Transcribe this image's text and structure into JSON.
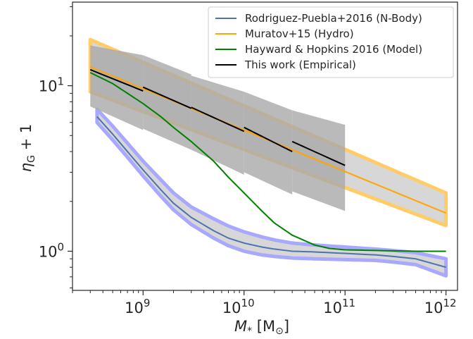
{
  "chart_data": {
    "type": "line",
    "xlabel": "M* [M⊙]",
    "ylabel": "ηG + 1",
    "xscale": "log",
    "yscale": "log",
    "xlim": [
      200000000.0,
      1300000000000.0
    ],
    "ylim": [
      0.58,
      32
    ],
    "grid": false,
    "legend_position": "top-right",
    "x_ticks": [
      {
        "base": "10",
        "exp": "9",
        "value": 1000000000.0
      },
      {
        "base": "10",
        "exp": "10",
        "value": 10000000000.0
      },
      {
        "base": "10",
        "exp": "11",
        "value": 100000000000.0
      },
      {
        "base": "10",
        "exp": "12",
        "value": 1000000000000.0
      }
    ],
    "y_ticks": [
      {
        "base": "10",
        "exp": "0",
        "value": 1
      },
      {
        "base": "10",
        "exp": "1",
        "value": 10
      }
    ],
    "series": [
      {
        "name": "Rodriguez-Puebla+2016 (N-Body)",
        "color": "#4c72b0",
        "band_edge_color": "#a8a8ff",
        "x": [
          350000000.0,
          500000000.0,
          700000000.0,
          1000000000.0,
          1500000000.0,
          2000000000.0,
          3000000000.0,
          5000000000.0,
          7000000000.0,
          10000000000.0,
          15000000000.0,
          20000000000.0,
          30000000000.0,
          50000000000.0,
          100000000000.0,
          200000000000.0,
          300000000000.0,
          500000000000.0,
          700000000000.0,
          1000000000000.0
        ],
        "values": [
          6.5,
          5.1,
          4.0,
          3.1,
          2.35,
          1.95,
          1.6,
          1.33,
          1.2,
          1.12,
          1.06,
          1.03,
          1.0,
          0.99,
          0.97,
          0.95,
          0.93,
          0.9,
          0.85,
          0.8
        ],
        "lower": [
          6.0,
          4.7,
          3.7,
          2.85,
          2.15,
          1.78,
          1.45,
          1.2,
          1.08,
          1.0,
          0.95,
          0.93,
          0.91,
          0.9,
          0.89,
          0.88,
          0.86,
          0.83,
          0.77,
          0.71
        ],
        "upper": [
          7.2,
          5.7,
          4.5,
          3.5,
          2.7,
          2.25,
          1.85,
          1.57,
          1.42,
          1.31,
          1.22,
          1.17,
          1.12,
          1.09,
          1.06,
          1.03,
          1.01,
          0.98,
          0.94,
          0.9
        ]
      },
      {
        "name": "Muratov+15 (Hydro)",
        "color": "#ffa500",
        "band_edge_color": "#ffcc66",
        "x": [
          300000000.0,
          1000000000000.0
        ],
        "values": [
          13.0,
          1.7
        ],
        "lower": [
          9.2,
          1.43
        ],
        "upper": [
          19.0,
          2.25
        ]
      },
      {
        "name": "Hayward & Hopkins 2016 (Model)",
        "color": "#008000",
        "x": [
          300000000.0,
          500000000.0,
          700000000.0,
          1000000000.0,
          1500000000.0,
          2000000000.0,
          3000000000.0,
          5000000000.0,
          7000000000.0,
          10000000000.0,
          15000000000.0,
          20000000000.0,
          30000000000.0,
          50000000000.0,
          70000000000.0,
          100000000000.0,
          200000000000.0,
          500000000000.0,
          1000000000000.0
        ],
        "values": [
          12.0,
          10.3,
          9.0,
          7.8,
          6.5,
          5.6,
          4.6,
          3.5,
          2.8,
          2.25,
          1.75,
          1.48,
          1.25,
          1.09,
          1.04,
          1.02,
          1.01,
          1.0,
          1.0
        ]
      },
      {
        "name": "This work (Empirical)",
        "color": "#000000",
        "band_color": "#a9a9a9",
        "segments": [
          {
            "x": [
              300000000.0,
              1000000000.0
            ],
            "values": [
              12.5,
              9.3
            ],
            "lower": [
              7.5,
              5.4
            ],
            "upper": [
              17.5,
              15.3
            ]
          },
          {
            "x": [
              1000000000.0,
              3000000000.0
            ],
            "values": [
              9.8,
              7.3
            ],
            "lower": [
              5.5,
              4.1
            ],
            "upper": [
              15.3,
              11.7
            ]
          },
          {
            "x": [
              3000000000.0,
              10000000000.0
            ],
            "values": [
              7.4,
              5.3
            ],
            "lower": [
              4.1,
              2.9
            ],
            "upper": [
              11.5,
              9.2
            ]
          },
          {
            "x": [
              10000000000.0,
              30000000000.0
            ],
            "values": [
              5.6,
              4.0
            ],
            "lower": [
              3.0,
              2.2
            ],
            "upper": [
              9.2,
              7.1
            ]
          },
          {
            "x": [
              30000000000.0,
              100000000000.0
            ],
            "values": [
              4.6,
              3.3
            ],
            "lower": [
              2.3,
              1.75
            ],
            "upper": [
              7.1,
              5.8
            ]
          }
        ]
      }
    ]
  }
}
